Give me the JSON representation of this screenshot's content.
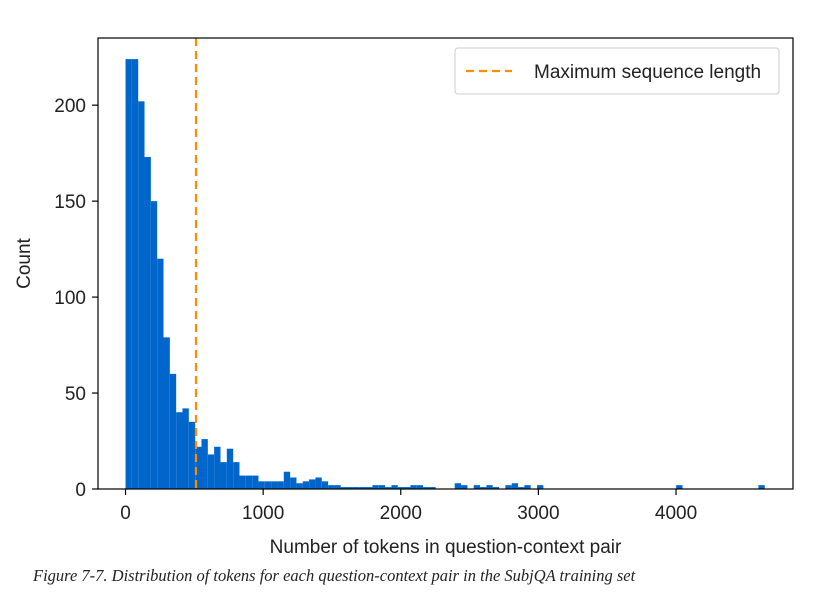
{
  "chart_data": {
    "type": "bar",
    "title": "",
    "xlabel": "Number of tokens in question-context pair",
    "ylabel": "Count",
    "xlim": [
      -200,
      4850
    ],
    "ylim": [
      0,
      235
    ],
    "xticks": [
      0,
      1000,
      2000,
      3000,
      4000
    ],
    "yticks": [
      0,
      50,
      100,
      150,
      200
    ],
    "bin_width": 46,
    "bar_color": "#0066cc",
    "grid": false,
    "legend": {
      "position": "top-right",
      "entries": [
        "Maximum sequence length"
      ]
    },
    "reference_line": {
      "name": "Maximum sequence length",
      "x": 512,
      "color": "#ff8c00",
      "style": "dashed"
    },
    "series": [
      {
        "values": [
          {
            "x": 23,
            "y": 224
          },
          {
            "x": 69,
            "y": 224
          },
          {
            "x": 115,
            "y": 202
          },
          {
            "x": 161,
            "y": 173
          },
          {
            "x": 207,
            "y": 150
          },
          {
            "x": 253,
            "y": 120
          },
          {
            "x": 299,
            "y": 79
          },
          {
            "x": 345,
            "y": 60
          },
          {
            "x": 391,
            "y": 40
          },
          {
            "x": 437,
            "y": 42
          },
          {
            "x": 483,
            "y": 35
          },
          {
            "x": 529,
            "y": 22
          },
          {
            "x": 575,
            "y": 26
          },
          {
            "x": 621,
            "y": 18
          },
          {
            "x": 667,
            "y": 22
          },
          {
            "x": 713,
            "y": 14
          },
          {
            "x": 759,
            "y": 21
          },
          {
            "x": 805,
            "y": 14
          },
          {
            "x": 851,
            "y": 7
          },
          {
            "x": 897,
            "y": 7
          },
          {
            "x": 943,
            "y": 7
          },
          {
            "x": 989,
            "y": 4
          },
          {
            "x": 1035,
            "y": 4
          },
          {
            "x": 1081,
            "y": 4
          },
          {
            "x": 1127,
            "y": 4
          },
          {
            "x": 1173,
            "y": 9
          },
          {
            "x": 1219,
            "y": 6
          },
          {
            "x": 1265,
            "y": 3
          },
          {
            "x": 1311,
            "y": 4
          },
          {
            "x": 1357,
            "y": 5
          },
          {
            "x": 1403,
            "y": 6
          },
          {
            "x": 1449,
            "y": 4
          },
          {
            "x": 1495,
            "y": 2
          },
          {
            "x": 1541,
            "y": 2
          },
          {
            "x": 1587,
            "y": 1
          },
          {
            "x": 1633,
            "y": 1
          },
          {
            "x": 1679,
            "y": 1
          },
          {
            "x": 1725,
            "y": 1
          },
          {
            "x": 1771,
            "y": 1
          },
          {
            "x": 1817,
            "y": 2
          },
          {
            "x": 1863,
            "y": 2
          },
          {
            "x": 1909,
            "y": 1
          },
          {
            "x": 1955,
            "y": 2
          },
          {
            "x": 2001,
            "y": 1
          },
          {
            "x": 2047,
            "y": 1
          },
          {
            "x": 2093,
            "y": 2
          },
          {
            "x": 2139,
            "y": 2
          },
          {
            "x": 2185,
            "y": 1
          },
          {
            "x": 2231,
            "y": 1
          },
          {
            "x": 2415,
            "y": 3
          },
          {
            "x": 2461,
            "y": 2
          },
          {
            "x": 2553,
            "y": 2
          },
          {
            "x": 2599,
            "y": 1
          },
          {
            "x": 2645,
            "y": 2
          },
          {
            "x": 2691,
            "y": 1
          },
          {
            "x": 2783,
            "y": 2
          },
          {
            "x": 2829,
            "y": 3
          },
          {
            "x": 2875,
            "y": 1
          },
          {
            "x": 2921,
            "y": 2
          },
          {
            "x": 3013,
            "y": 2
          },
          {
            "x": 4024,
            "y": 2
          },
          {
            "x": 4622,
            "y": 2
          }
        ]
      }
    ]
  },
  "caption": "Figure 7-7. Distribution of tokens for each question-context pair in the SubjQA training set"
}
